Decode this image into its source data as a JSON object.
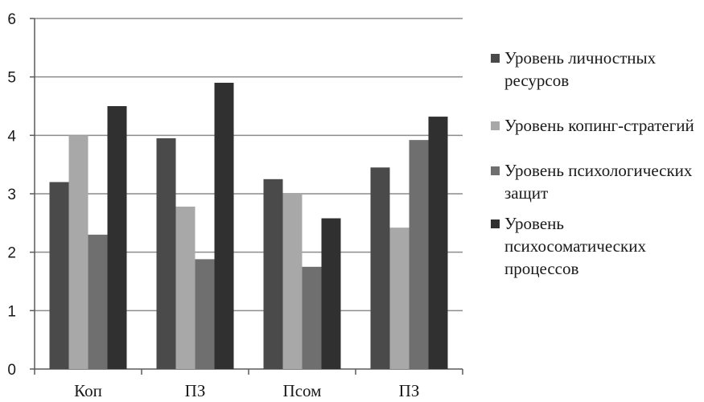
{
  "chart_data": {
    "type": "bar",
    "categories": [
      "Коп",
      "ПЗ",
      "Псом",
      "ПЗ"
    ],
    "ylim": [
      0,
      6
    ],
    "yticks": [
      0,
      1,
      2,
      3,
      4,
      5,
      6
    ],
    "grid": true,
    "legend_position": "right",
    "series": [
      {
        "name": "Уровень личностных ресурсов",
        "color": "#4a4a4a",
        "values": [
          3.2,
          3.95,
          3.25,
          3.45
        ]
      },
      {
        "name": "Уровень копинг-стратегий",
        "color": "#a8a8a8",
        "values": [
          4.0,
          2.78,
          3.0,
          2.42
        ]
      },
      {
        "name": "Уровень психологических защит",
        "color": "#6f6f6f",
        "values": [
          2.3,
          1.88,
          1.75,
          3.92
        ]
      },
      {
        "name": "Уровень психосоматических процессов",
        "color": "#303030",
        "values": [
          4.5,
          4.9,
          2.58,
          4.32
        ]
      }
    ]
  }
}
